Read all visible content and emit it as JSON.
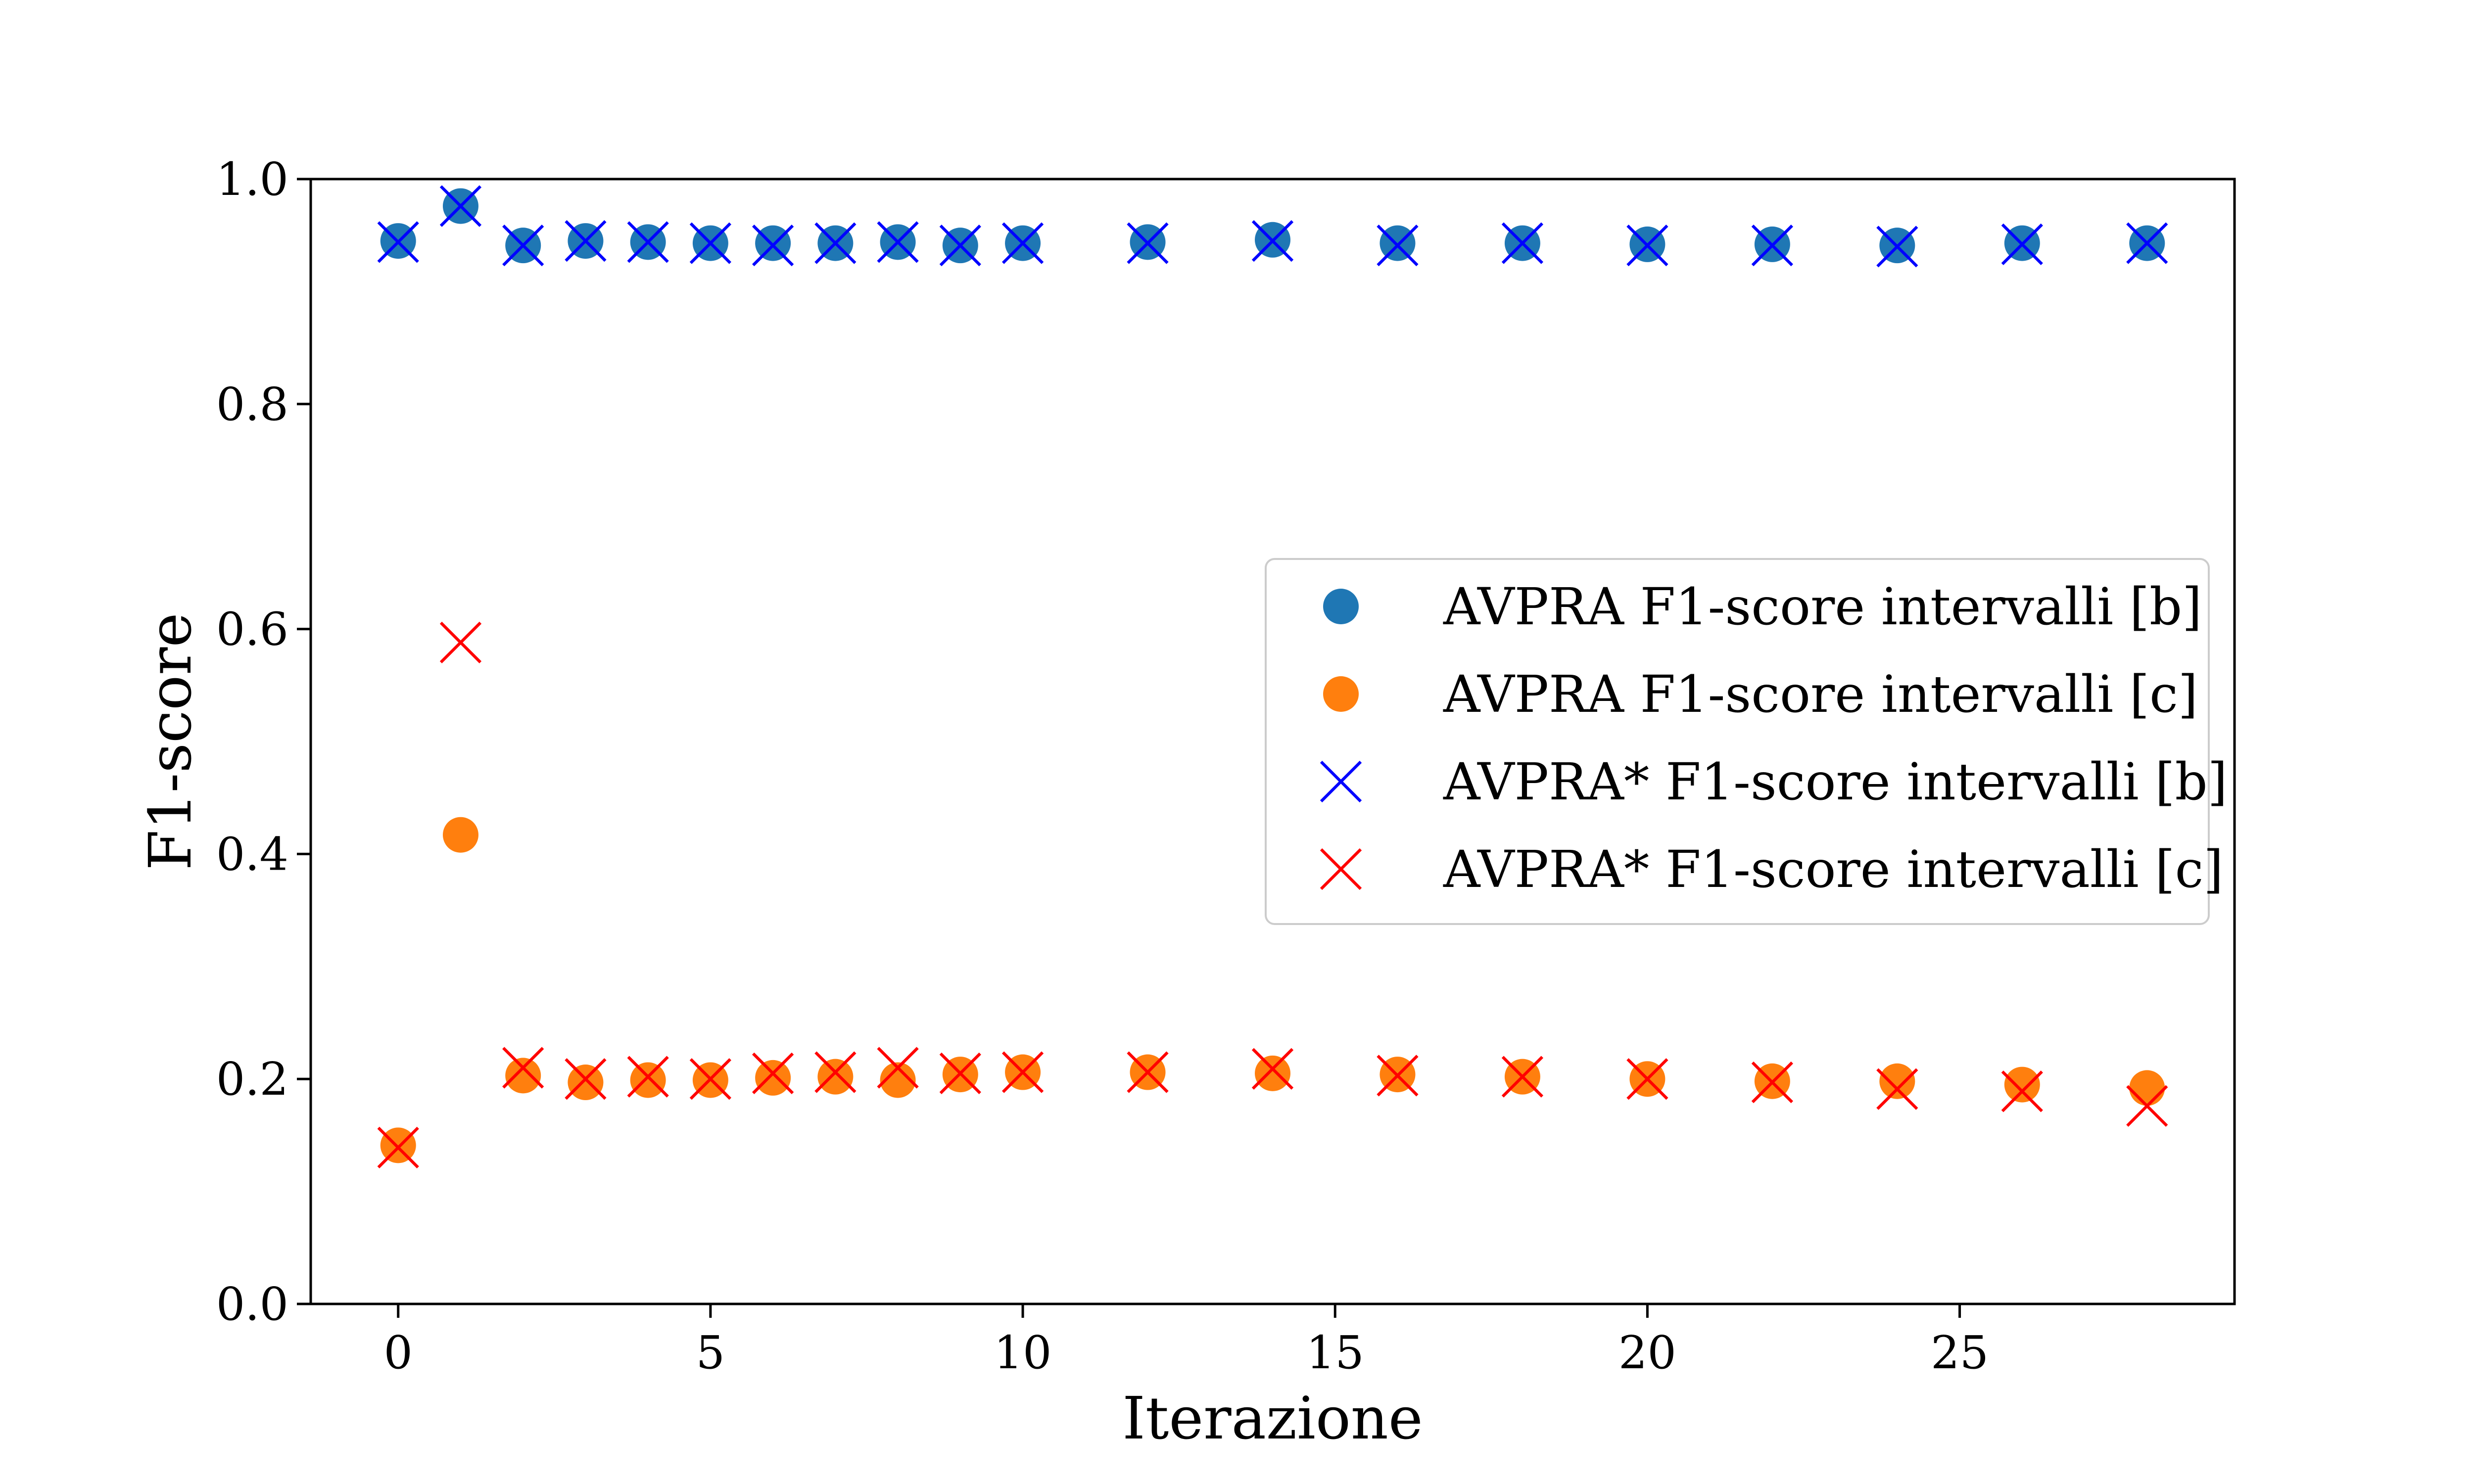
{
  "chart_data": {
    "type": "scatter",
    "xlabel": "Iterazione",
    "ylabel": "F1-score",
    "xlim": [
      -1.4,
      29.4
    ],
    "ylim": [
      0.0,
      1.0
    ],
    "xticks": [
      0,
      5,
      10,
      15,
      20,
      25
    ],
    "yticks": [
      0.0,
      0.2,
      0.4,
      0.6,
      0.8,
      1.0
    ],
    "xtick_labels": [
      "0",
      "5",
      "10",
      "15",
      "20",
      "25"
    ],
    "ytick_labels": [
      "0.0",
      "0.2",
      "0.4",
      "0.6",
      "0.8",
      "1.0"
    ],
    "grid": false,
    "legend_position": "center-right",
    "x": [
      0,
      1,
      2,
      3,
      4,
      5,
      6,
      7,
      8,
      9,
      10,
      12,
      14,
      16,
      18,
      20,
      22,
      24,
      26,
      28
    ],
    "series": [
      {
        "name": "AVPRA F1-score intervalli [b]",
        "marker": "circle",
        "color": "#1f77b4",
        "values": [
          0.945,
          0.976,
          0.941,
          0.945,
          0.944,
          0.943,
          0.943,
          0.943,
          0.944,
          0.941,
          0.943,
          0.944,
          0.946,
          0.943,
          0.943,
          0.942,
          0.942,
          0.941,
          0.943,
          0.943
        ]
      },
      {
        "name": "AVPRA F1-score intervalli [c]",
        "marker": "circle",
        "color": "#ff7f0e",
        "values": [
          0.141,
          0.417,
          0.203,
          0.197,
          0.199,
          0.199,
          0.201,
          0.202,
          0.199,
          0.204,
          0.206,
          0.206,
          0.205,
          0.204,
          0.202,
          0.2,
          0.198,
          0.198,
          0.195,
          0.192
        ]
      },
      {
        "name": "AVPRA* F1-score intervalli [b]",
        "marker": "x",
        "color": "#0000ff",
        "values": [
          0.944,
          0.976,
          0.941,
          0.945,
          0.944,
          0.943,
          0.941,
          0.943,
          0.944,
          0.941,
          0.943,
          0.943,
          0.945,
          0.941,
          0.943,
          0.941,
          0.941,
          0.94,
          0.942,
          0.943
        ]
      },
      {
        "name": "AVPRA* F1-score intervalli [c]",
        "marker": "x",
        "color": "#ff0000",
        "values": [
          0.139,
          0.588,
          0.21,
          0.2,
          0.202,
          0.2,
          0.205,
          0.206,
          0.21,
          0.205,
          0.206,
          0.206,
          0.209,
          0.203,
          0.202,
          0.2,
          0.197,
          0.191,
          0.189,
          0.176
        ]
      }
    ]
  }
}
